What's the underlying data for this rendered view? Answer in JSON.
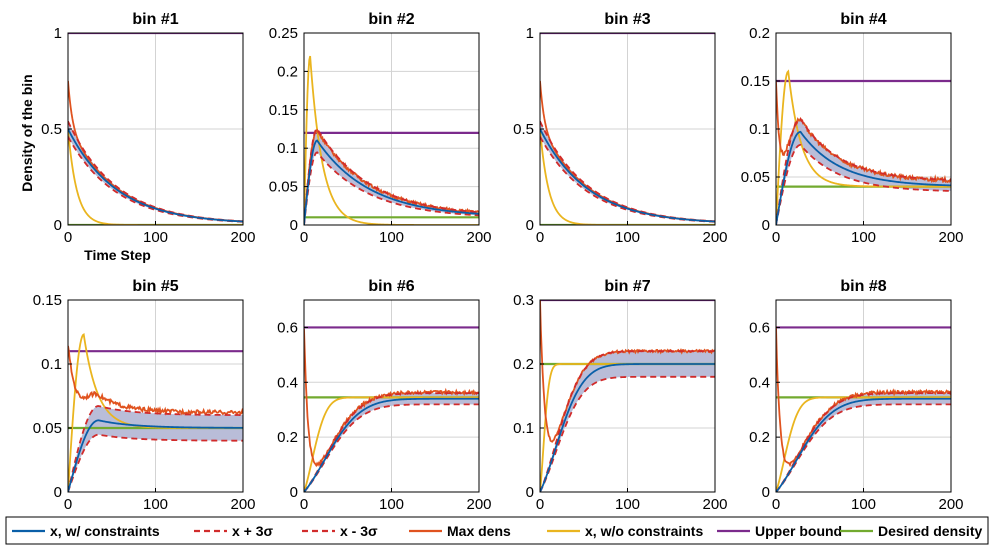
{
  "colors": {
    "x_constr": "#0a5fa8",
    "x_plus": "#d12b2b",
    "x_minus": "#d12b2b",
    "band": "#b9bdd8",
    "max_dens": "#e0531f",
    "x_no_constr": "#eab51f",
    "upper": "#7b2a8c",
    "desired": "#72aa2f",
    "grid": "#d3d3d3"
  },
  "legend": [
    {
      "key": "x_constr",
      "label": "x, w/ constraints",
      "style": "solid"
    },
    {
      "key": "x_plus",
      "label": "x + 3σ",
      "style": "dashed"
    },
    {
      "key": "x_minus",
      "label": "x - 3σ",
      "style": "dashed"
    },
    {
      "key": "max_dens",
      "label": "Max dens",
      "style": "solid"
    },
    {
      "key": "x_no_constr",
      "label": "x, w/o constraints",
      "style": "solid"
    },
    {
      "key": "upper",
      "label": "Upper bound",
      "style": "solid"
    },
    {
      "key": "desired",
      "label": "Desired density",
      "style": "solid"
    }
  ],
  "chart_data": [
    {
      "type": "line",
      "title": "bin #1",
      "xlabel": "Time Step",
      "ylabel": "Density of the bin",
      "xlim": [
        0,
        200
      ],
      "ylim": [
        0,
        1
      ],
      "xticks": [
        0,
        100,
        200
      ],
      "yticks": [
        0,
        0.5,
        1
      ],
      "ytick_labels": [
        "0",
        "0.5",
        "1"
      ],
      "model": {
        "kind": "decay",
        "start": 0.5,
        "tau": 55,
        "peak_t": 0,
        "final": 0.005,
        "band_rel": 0.08
      },
      "max_dens": {
        "start": 0.75,
        "tau": 4,
        "base_rel": 1.04,
        "noise": 0
      },
      "no_constr": {
        "kind": "decay",
        "start": 0.5,
        "tau": 10,
        "peak_t": 0,
        "final": 0.0
      },
      "upper_bound": 1,
      "desired_density": 0.0
    },
    {
      "type": "line",
      "title": "bin #2",
      "xlabel": "",
      "ylabel": "",
      "xlim": [
        0,
        200
      ],
      "ylim": [
        0,
        0.25
      ],
      "xticks": [
        0,
        100,
        200
      ],
      "yticks": [
        0,
        0.05,
        0.1,
        0.15,
        0.2,
        0.25
      ],
      "ytick_labels": [
        "0",
        "0.05",
        "0.1",
        "0.15",
        "0.2",
        "0.25"
      ],
      "model": {
        "kind": "peak",
        "start": 0.0,
        "peak": 0.11,
        "peak_t": 15,
        "tau": 60,
        "final": 0.01,
        "band_rel": 0.14
      },
      "max_dens": {
        "start": 0.0,
        "tau": 0,
        "base_rel": 1.12,
        "noise": 0.002
      },
      "no_constr": {
        "kind": "peak",
        "start": 0.0,
        "peak": 0.22,
        "peak_t": 7,
        "tau": 14,
        "final": 0.0
      },
      "upper_bound": 0.12,
      "desired_density": 0.01
    },
    {
      "type": "line",
      "title": "bin #3",
      "xlabel": "",
      "ylabel": "",
      "xlim": [
        0,
        200
      ],
      "ylim": [
        0,
        1
      ],
      "xticks": [
        0,
        100,
        200
      ],
      "yticks": [
        0,
        0.5,
        1
      ],
      "ytick_labels": [
        "0",
        "0.5",
        "1"
      ],
      "model": {
        "kind": "decay",
        "start": 0.5,
        "tau": 55,
        "peak_t": 0,
        "final": 0.005,
        "band_rel": 0.08
      },
      "max_dens": {
        "start": 0.75,
        "tau": 4,
        "base_rel": 1.04,
        "noise": 0
      },
      "no_constr": {
        "kind": "decay",
        "start": 0.5,
        "tau": 10,
        "peak_t": 0,
        "final": 0.0
      },
      "upper_bound": 1,
      "desired_density": 0.0
    },
    {
      "type": "line",
      "title": "bin #4",
      "xlabel": "",
      "ylabel": "",
      "xlim": [
        0,
        200
      ],
      "ylim": [
        0,
        0.2
      ],
      "xticks": [
        0,
        100,
        200
      ],
      "yticks": [
        0,
        0.05,
        0.1,
        0.15,
        0.2
      ],
      "ytick_labels": [
        "0",
        "0.05",
        "0.1",
        "0.15",
        "0.2"
      ],
      "model": {
        "kind": "peak",
        "start": 0.0,
        "peak": 0.097,
        "peak_t": 28,
        "tau": 45,
        "final": 0.04,
        "band_rel": 0.14
      },
      "max_dens": {
        "start": 0.15,
        "tau": 6,
        "base_rel": 1.13,
        "noise": 0.002
      },
      "no_constr": {
        "kind": "peak",
        "start": 0.0,
        "peak": 0.16,
        "peak_t": 14,
        "tau": 15,
        "final": 0.04
      },
      "upper_bound": 0.15,
      "desired_density": 0.04
    },
    {
      "type": "line",
      "title": "bin #5",
      "xlabel": "",
      "ylabel": "",
      "xlim": [
        0,
        200
      ],
      "ylim": [
        0,
        0.15
      ],
      "xticks": [
        0,
        100,
        200
      ],
      "yticks": [
        0,
        0.05,
        0.1,
        0.15
      ],
      "ytick_labels": [
        "0",
        "0.05",
        "0.1",
        "0.15"
      ],
      "model": {
        "kind": "peak",
        "start": 0.0,
        "peak": 0.056,
        "peak_t": 35,
        "tau": 40,
        "final": 0.05,
        "band_rel": 0.2
      },
      "max_dens": {
        "start": 0.115,
        "tau": 18,
        "base_rel": 1.24,
        "noise": 0.0015
      },
      "no_constr": {
        "kind": "peak",
        "start": 0.0,
        "peak": 0.123,
        "peak_t": 18,
        "tau": 16,
        "final": 0.05
      },
      "upper_bound": 0.11,
      "desired_density": 0.05
    },
    {
      "type": "line",
      "title": "bin #6",
      "xlabel": "",
      "ylabel": "",
      "xlim": [
        0,
        200
      ],
      "ylim": [
        0,
        0.7
      ],
      "xticks": [
        0,
        100,
        200
      ],
      "yticks": [
        0,
        0.2,
        0.4,
        0.6
      ],
      "ytick_labels": [
        "0",
        "0.2",
        "0.4",
        "0.6"
      ],
      "model": {
        "kind": "rise",
        "start": 0.0,
        "tau": 55,
        "peak_t": 0,
        "final": 0.34,
        "band_rel": 0.06
      },
      "max_dens": {
        "start": 0.6,
        "tau": 5,
        "base_rel": 1.07,
        "noise": 0.006
      },
      "no_constr": {
        "kind": "rise",
        "start": 0.0,
        "tau": 22,
        "peak_t": 0,
        "final": 0.345
      },
      "upper_bound": 0.6,
      "desired_density": 0.345
    },
    {
      "type": "line",
      "title": "bin #7",
      "xlabel": "",
      "ylabel": "",
      "xlim": [
        0,
        200
      ],
      "ylim": [
        0,
        0.3
      ],
      "xticks": [
        0,
        100,
        200
      ],
      "yticks": [
        0,
        0.1,
        0.2,
        0.3
      ],
      "ytick_labels": [
        "0",
        "0.1",
        "0.2",
        "0.3"
      ],
      "model": {
        "kind": "rise",
        "start": 0.0,
        "tau": 42,
        "peak_t": 0,
        "final": 0.2,
        "band_rel": 0.1
      },
      "max_dens": {
        "start": 0.3,
        "tau": 6,
        "base_rel": 1.1,
        "noise": 0.002
      },
      "no_constr": {
        "kind": "rise",
        "start": 0.0,
        "tau": 9,
        "peak_t": 0,
        "final": 0.2
      },
      "upper_bound": 0.3,
      "desired_density": 0.2
    },
    {
      "type": "line",
      "title": "bin #8",
      "xlabel": "",
      "ylabel": "",
      "xlim": [
        0,
        200
      ],
      "ylim": [
        0,
        0.7
      ],
      "xticks": [
        0,
        100,
        200
      ],
      "yticks": [
        0,
        0.2,
        0.4,
        0.6
      ],
      "ytick_labels": [
        "0",
        "0.2",
        "0.4",
        "0.6"
      ],
      "model": {
        "kind": "rise",
        "start": 0.0,
        "tau": 55,
        "peak_t": 0,
        "final": 0.34,
        "band_rel": 0.06
      },
      "max_dens": {
        "start": 0.6,
        "tau": 5,
        "base_rel": 1.07,
        "noise": 0.006
      },
      "no_constr": {
        "kind": "rise",
        "start": 0.0,
        "tau": 22,
        "peak_t": 0,
        "final": 0.345
      },
      "upper_bound": 0.6,
      "desired_density": 0.345
    }
  ]
}
